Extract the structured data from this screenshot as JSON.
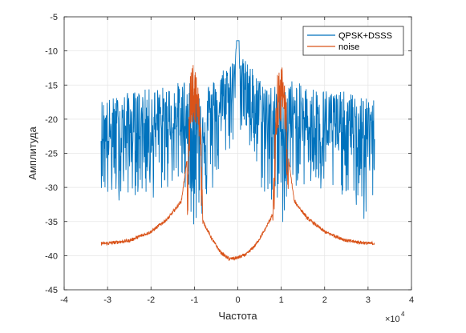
{
  "chart_data": {
    "type": "line",
    "xlabel": "Частота",
    "ylabel": "Амплитуда",
    "x_exponent_base": "×10",
    "x_exponent_power": "4",
    "xlim": [
      -4,
      4
    ],
    "ylim": [
      -45,
      -5
    ],
    "xticks": [
      "-4",
      "-3",
      "-2",
      "-1",
      "0",
      "1",
      "2",
      "3",
      "4"
    ],
    "yticks": [
      "-5",
      "-10",
      "-15",
      "-20",
      "-25",
      "-30",
      "-35",
      "-40",
      "-45"
    ],
    "grid": true,
    "legend_position": "top-right",
    "series": [
      {
        "name": "QPSK+DSSS",
        "color": "#0072BD",
        "description_of_shape": "noisy broadband signal spanning the full band",
        "x": [
          -3.15,
          -3.0,
          -2.5,
          -2.0,
          -1.5,
          -1.2,
          -1.0,
          -0.5,
          -0.3,
          -0.1,
          0.0,
          0.1,
          0.3,
          0.5,
          1.0,
          1.2,
          1.5,
          2.0,
          2.5,
          3.0,
          3.15
        ],
        "mean": [
          -22,
          -23,
          -22,
          -21.5,
          -21,
          -21,
          -21.5,
          -20,
          -18,
          -15,
          -8.5,
          -15,
          -18,
          -20,
          -21.5,
          -21,
          -21,
          -21.5,
          -22,
          -23,
          -22
        ],
        "peak_high": [
          -17,
          -17,
          -16,
          -15.5,
          -15,
          -14,
          -15.5,
          -14,
          -12,
          -11,
          -8.5,
          -11,
          -12,
          -14,
          -15.5,
          -14,
          -15,
          -15.5,
          -16,
          -17,
          -17
        ],
        "peak_low": [
          -30,
          -33,
          -31,
          -32,
          -30,
          -30,
          -37,
          -30,
          -26,
          -24,
          -20,
          -24,
          -26,
          -30,
          -37,
          -30,
          -30,
          -32,
          -31,
          -37,
          -30
        ]
      },
      {
        "name": "noise",
        "color": "#D95319",
        "x": [
          -3.15,
          -3.0,
          -2.5,
          -2.0,
          -1.6,
          -1.3,
          -1.15,
          -1.1,
          -1.0,
          -0.9,
          -0.85,
          -0.8,
          -0.6,
          -0.4,
          -0.2,
          0.0,
          0.2,
          0.4,
          0.6,
          0.8,
          0.85,
          0.9,
          1.0,
          1.1,
          1.15,
          1.3,
          1.6,
          2.0,
          2.5,
          3.0,
          3.15
        ],
        "y": [
          -38.2,
          -38.2,
          -37.8,
          -36.5,
          -34.5,
          -32,
          -25,
          -13,
          -11.5,
          -13,
          -22,
          -35,
          -37.5,
          -39.5,
          -40.5,
          -40.3,
          -39.8,
          -38.5,
          -36.5,
          -34,
          -22,
          -13,
          -11.5,
          -13,
          -25,
          -32,
          -34.5,
          -36.5,
          -37.8,
          -38.2,
          -38.2
        ]
      }
    ]
  }
}
